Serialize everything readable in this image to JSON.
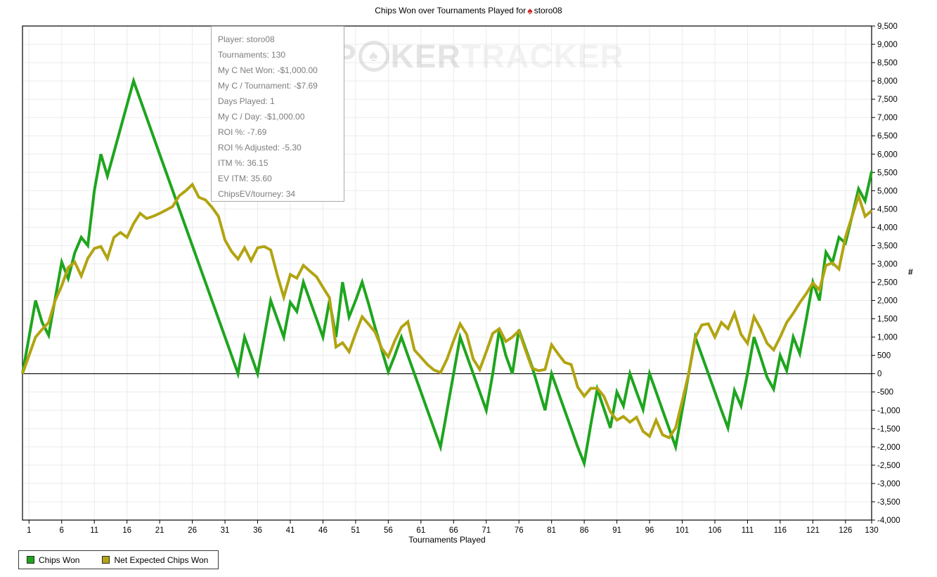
{
  "title": {
    "text_before": "Chips Won over Tournaments Played for",
    "player": "storo08",
    "icon": "red-spade-icon"
  },
  "watermark": {
    "p": "P",
    "ker": "KER",
    "tracker": "TRACKER",
    "o_icon": "poker-chip-icon"
  },
  "tooltip": {
    "lines": [
      "Player: storo08",
      "Tournaments: 130",
      "My C Net Won: -$1,000.00",
      "My C / Tournament: -$7.69",
      "Days Played: 1",
      "My C / Day: -$1,000.00",
      "ROI %: -7.69",
      "ROI % Adjusted: -5.30",
      "ITM %: 36.15",
      "EV ITM: 35.60",
      "ChipsEV/tourney: 34"
    ]
  },
  "chart_data": {
    "type": "line",
    "title": "Chips Won over Tournaments Played for storo08",
    "xlabel": "Tournaments Played",
    "ylabel": "#",
    "xlim": [
      0,
      130
    ],
    "ylim": [
      -4000,
      9500
    ],
    "y_tick_step": 500,
    "x_ticks": [
      1,
      6,
      11,
      16,
      21,
      26,
      31,
      36,
      41,
      46,
      51,
      56,
      61,
      66,
      71,
      76,
      81,
      86,
      91,
      96,
      101,
      106,
      111,
      116,
      121,
      126,
      130
    ],
    "grid": true,
    "legend_position": "bottom-left",
    "colors": {
      "grid": "#ebebeb",
      "axis": "#000000",
      "zero_line": "#000000"
    },
    "series": [
      {
        "name": "Chips Won",
        "color": "#1ea51e",
        "x_start": 0,
        "values": [
          0,
          1000,
          2000,
          1400,
          1050,
          2050,
          3050,
          2600,
          3300,
          3725,
          3500,
          5000,
          6000,
          5400,
          6050,
          6700,
          7350,
          8000,
          7500,
          7000,
          6500,
          6000,
          5500,
          5000,
          4500,
          4000,
          3500,
          3000,
          2500,
          2000,
          1500,
          1000,
          500,
          0,
          1000,
          500,
          0,
          1000,
          2000,
          1500,
          1000,
          1950,
          1700,
          2500,
          2000,
          1500,
          1000,
          2000,
          1000,
          2500,
          1550,
          2000,
          2500,
          1900,
          1250,
          650,
          50,
          500,
          1000,
          500,
          0,
          -500,
          -1000,
          -1500,
          -2000,
          -1000,
          0,
          1000,
          500,
          0,
          -500,
          -1000,
          0,
          1200,
          500,
          0,
          1200,
          700,
          200,
          -400,
          -1000,
          0,
          -500,
          -1000,
          -1500,
          -2000,
          -2450,
          -1400,
          -420,
          -950,
          -1480,
          -500,
          -880,
          0,
          -500,
          -980,
          0,
          -500,
          -1000,
          -1500,
          -2000,
          -1000,
          0,
          1000,
          500,
          0,
          -500,
          -1000,
          -1480,
          -460,
          -880,
          0,
          1000,
          460,
          -100,
          -420,
          500,
          80,
          1000,
          550,
          1500,
          2500,
          2000,
          3320,
          3030,
          3725,
          3570,
          4300,
          5050,
          4720,
          5530
        ]
      },
      {
        "name": "Net Expected Chips Won",
        "color": "#b2a412",
        "x_start": 0,
        "values": [
          0,
          500,
          1000,
          1210,
          1400,
          2000,
          2400,
          2900,
          3050,
          2670,
          3150,
          3420,
          3475,
          3150,
          3725,
          3860,
          3725,
          4100,
          4380,
          4240,
          4300,
          4380,
          4470,
          4570,
          4860,
          5000,
          5170,
          4820,
          4750,
          4550,
          4300,
          3650,
          3340,
          3130,
          3440,
          3090,
          3440,
          3475,
          3380,
          2700,
          2090,
          2710,
          2610,
          2960,
          2800,
          2650,
          2360,
          2075,
          730,
          845,
          600,
          1100,
          1555,
          1350,
          1130,
          690,
          460,
          900,
          1270,
          1420,
          650,
          450,
          250,
          100,
          30,
          400,
          900,
          1360,
          1075,
          400,
          115,
          600,
          1100,
          1230,
          880,
          1000,
          1170,
          650,
          155,
          80,
          115,
          790,
          540,
          310,
          250,
          -365,
          -615,
          -400,
          -400,
          -615,
          -1040,
          -1270,
          -1170,
          -1325,
          -1190,
          -1575,
          -1710,
          -1270,
          -1670,
          -1750,
          -1480,
          -750,
          0,
          980,
          1330,
          1363,
          1000,
          1400,
          1230,
          1650,
          1075,
          830,
          1555,
          1230,
          830,
          650,
          1000,
          1400,
          1650,
          1940,
          2190,
          2480,
          2290,
          2960,
          3030,
          2860,
          3730,
          4300,
          4860,
          4300,
          4455
        ]
      }
    ]
  },
  "legend": {
    "items": [
      {
        "label": "Chips Won",
        "color": "#1ea51e"
      },
      {
        "label": "Net Expected Chips Won",
        "color": "#b2a412"
      }
    ]
  }
}
